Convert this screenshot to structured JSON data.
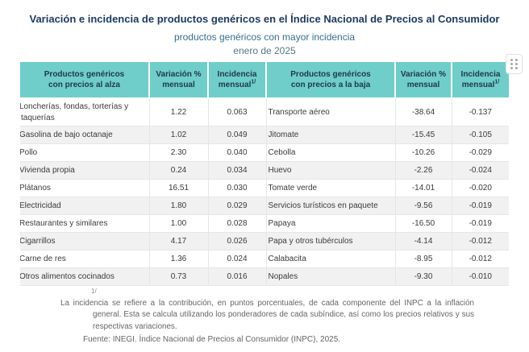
{
  "chart_data": {
    "type": "table",
    "title": "Variación e incidencia de productos genéricos en el Índice Nacional de Precios al Consumidor",
    "subtitle": "productos genéricos con mayor incidencia",
    "period": "enero de 2025",
    "column_headers": {
      "product_up_line1": "Productos genéricos",
      "product_up_line2": "con precios al alza",
      "variation_line1": "Variación %",
      "variation_line2": "mensual",
      "incidence_line1": "Incidencia",
      "incidence_line2": "mensual",
      "footnote_mark": "1/",
      "product_down_line1": "Productos genéricos",
      "product_down_line2": "con precios a la baja"
    },
    "rows": [
      {
        "up": {
          "product": "Loncherías, fondas, torterías y taquerías",
          "variation": "1.22",
          "incidence": "0.063"
        },
        "down": {
          "product": "Transporte aéreo",
          "variation": "-38.64",
          "incidence": "-0.137"
        }
      },
      {
        "up": {
          "product": "Gasolina de bajo octanaje",
          "variation": "1.02",
          "incidence": "0.049"
        },
        "down": {
          "product": "Jitomate",
          "variation": "-15.45",
          "incidence": "-0.105"
        }
      },
      {
        "up": {
          "product": "Pollo",
          "variation": "2.30",
          "incidence": "0.040"
        },
        "down": {
          "product": "Cebolla",
          "variation": "-10.26",
          "incidence": "-0.029"
        }
      },
      {
        "up": {
          "product": "Vivienda propia",
          "variation": "0.24",
          "incidence": "0.034"
        },
        "down": {
          "product": "Huevo",
          "variation": "-2.26",
          "incidence": "-0.024"
        }
      },
      {
        "up": {
          "product": "Plátanos",
          "variation": "16.51",
          "incidence": "0.030"
        },
        "down": {
          "product": "Tomate verde",
          "variation": "-14.01",
          "incidence": "-0.020"
        }
      },
      {
        "up": {
          "product": "Electricidad",
          "variation": "1.80",
          "incidence": "0.029"
        },
        "down": {
          "product": "Servicios turísticos en paquete",
          "variation": "-9.56",
          "incidence": "-0.019"
        }
      },
      {
        "up": {
          "product": "Restaurantes y similares",
          "variation": "1.00",
          "incidence": "0.028"
        },
        "down": {
          "product": "Papaya",
          "variation": "-16.50",
          "incidence": "-0.019"
        }
      },
      {
        "up": {
          "product": "Cigarrillos",
          "variation": "4.17",
          "incidence": "0.026"
        },
        "down": {
          "product": "Papa y otros tubérculos",
          "variation": "-4.14",
          "incidence": "-0.012"
        }
      },
      {
        "up": {
          "product": "Carne de res",
          "variation": "1.36",
          "incidence": "0.024"
        },
        "down": {
          "product": "Calabacita",
          "variation": "-8.95",
          "incidence": "-0.012"
        }
      },
      {
        "up": {
          "product": "Otros alimentos cocinados",
          "variation": "0.73",
          "incidence": "0.016"
        },
        "down": {
          "product": "Nopales",
          "variation": "-9.30",
          "incidence": "-0.010"
        }
      }
    ]
  },
  "footnotes": {
    "mark": "1/",
    "note": "La incidencia se refiere a la contribución, en puntos porcentuales, de cada componente del INPC a la inflación general. Esta se calcula utilizando los ponderadores de cada subíndice, así como los precios relativos y sus respectivas variaciones.",
    "source": "Fuente: INEGI. Índice Nacional de Precios al Consumidor (INPC), 2025."
  },
  "icons": {
    "drag_handle": "six-dot-grip"
  },
  "colors": {
    "header_bg": "#6FCEC9",
    "header_text": "#20394E",
    "title_color": "#1C3A5F",
    "subtitle_color": "#35708D",
    "period_color": "#567888",
    "row_alt": "#F1F1F1",
    "grid_color": "#E6E6E6",
    "body_text": "#3B3B3B",
    "footnote_color": "#666666"
  }
}
